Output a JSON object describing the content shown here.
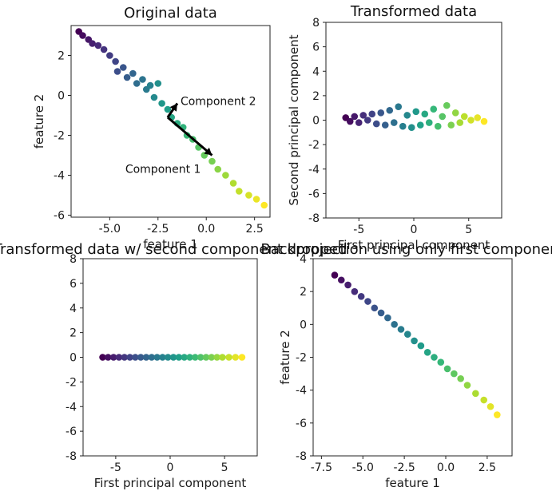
{
  "chart_data": [
    {
      "id": "p1",
      "type": "scatter",
      "title": "Original data",
      "xlabel": "feature 1",
      "ylabel": "feature 2",
      "xlim": [
        -7,
        3.3
      ],
      "ylim": [
        -6.1,
        3.5
      ],
      "xticks": [
        -5.0,
        -2.5,
        0.0,
        2.5
      ],
      "xtick_labels": [
        "-5.0",
        "-2.5",
        "0.0",
        "2.5"
      ],
      "yticks": [
        2,
        0,
        -2,
        -4,
        -6
      ],
      "ytick_labels": [
        "2",
        "0",
        "-2",
        "-4",
        "-6"
      ],
      "colormap": "viridis",
      "points": [
        [
          -6.6,
          3.2
        ],
        [
          -6.4,
          3.0
        ],
        [
          -6.1,
          2.8
        ],
        [
          -5.9,
          2.6
        ],
        [
          -5.6,
          2.5
        ],
        [
          -5.3,
          2.3
        ],
        [
          -5.0,
          2.0
        ],
        [
          -4.7,
          1.7
        ],
        [
          -4.6,
          1.2
        ],
        [
          -4.3,
          1.4
        ],
        [
          -4.1,
          0.9
        ],
        [
          -3.8,
          1.1
        ],
        [
          -3.6,
          0.6
        ],
        [
          -3.3,
          0.8
        ],
        [
          -3.1,
          0.3
        ],
        [
          -2.9,
          0.5
        ],
        [
          -2.7,
          -0.1
        ],
        [
          -2.5,
          0.6
        ],
        [
          -2.3,
          -0.4
        ],
        [
          -2.0,
          -0.7
        ],
        [
          -1.8,
          -1.1
        ],
        [
          -1.5,
          -1.4
        ],
        [
          -1.2,
          -1.6
        ],
        [
          -1.0,
          -2.0
        ],
        [
          -0.7,
          -2.2
        ],
        [
          -0.4,
          -2.6
        ],
        [
          -0.1,
          -3.0
        ],
        [
          0.3,
          -3.3
        ],
        [
          0.6,
          -3.7
        ],
        [
          1.0,
          -4.0
        ],
        [
          1.4,
          -4.4
        ],
        [
          1.7,
          -4.8
        ],
        [
          2.2,
          -5.0
        ],
        [
          2.6,
          -5.2
        ],
        [
          3.0,
          -5.5
        ]
      ],
      "arrows": [
        {
          "from": [
            -2.0,
            -1.1
          ],
          "to": [
            0.3,
            -3.0
          ],
          "label": "Component 1"
        },
        {
          "from": [
            -2.0,
            -1.1
          ],
          "to": [
            -1.5,
            -0.4
          ],
          "label": "Component 2"
        }
      ]
    },
    {
      "id": "p2",
      "type": "scatter",
      "title": "Transformed data",
      "xlabel": "First principal component",
      "ylabel": "Second principal component",
      "xlim": [
        -8,
        8
      ],
      "ylim": [
        -8,
        8
      ],
      "xticks": [
        -5,
        0,
        5
      ],
      "xtick_labels": [
        "-5",
        "0",
        "5"
      ],
      "yticks": [
        8,
        6,
        4,
        2,
        0,
        -2,
        -4,
        -6,
        -8
      ],
      "ytick_labels": [
        "8",
        "6",
        "4",
        "2",
        "0",
        "-2",
        "-4",
        "-6",
        "-8"
      ],
      "colormap": "viridis",
      "points": [
        [
          -6.2,
          0.2
        ],
        [
          -5.8,
          -0.1
        ],
        [
          -5.4,
          0.3
        ],
        [
          -5.0,
          -0.2
        ],
        [
          -4.6,
          0.4
        ],
        [
          -4.2,
          0.0
        ],
        [
          -3.8,
          0.5
        ],
        [
          -3.4,
          -0.3
        ],
        [
          -3.0,
          0.6
        ],
        [
          -2.6,
          -0.4
        ],
        [
          -2.2,
          0.8
        ],
        [
          -1.8,
          -0.2
        ],
        [
          -1.4,
          1.1
        ],
        [
          -1.0,
          -0.5
        ],
        [
          -0.6,
          0.4
        ],
        [
          -0.2,
          -0.6
        ],
        [
          0.2,
          0.7
        ],
        [
          0.6,
          -0.4
        ],
        [
          1.0,
          0.5
        ],
        [
          1.4,
          -0.2
        ],
        [
          1.8,
          0.9
        ],
        [
          2.2,
          -0.5
        ],
        [
          2.6,
          0.3
        ],
        [
          3.0,
          1.2
        ],
        [
          3.4,
          -0.4
        ],
        [
          3.8,
          0.6
        ],
        [
          4.2,
          -0.2
        ],
        [
          4.6,
          0.3
        ],
        [
          5.2,
          0.0
        ],
        [
          5.8,
          0.2
        ],
        [
          6.4,
          -0.1
        ]
      ]
    },
    {
      "id": "p3",
      "type": "scatter",
      "title": "Transformed data w/ second component dropped",
      "xlabel": "First principal component",
      "ylabel": "",
      "xlim": [
        -8,
        8
      ],
      "ylim": [
        -8,
        8
      ],
      "xticks": [
        -5,
        0,
        5
      ],
      "xtick_labels": [
        "-5",
        "0",
        "5"
      ],
      "yticks": [
        8,
        6,
        4,
        2,
        0,
        -2,
        -4,
        -6,
        -8
      ],
      "ytick_labels": [
        "8",
        "6",
        "4",
        "2",
        "0",
        "-2",
        "-4",
        "-6",
        "-8"
      ],
      "colormap": "viridis",
      "points": [
        [
          -6.2,
          0
        ],
        [
          -5.7,
          0
        ],
        [
          -5.2,
          0
        ],
        [
          -4.7,
          0
        ],
        [
          -4.2,
          0
        ],
        [
          -3.7,
          0
        ],
        [
          -3.2,
          0
        ],
        [
          -2.7,
          0
        ],
        [
          -2.2,
          0
        ],
        [
          -1.7,
          0
        ],
        [
          -1.2,
          0
        ],
        [
          -0.7,
          0
        ],
        [
          -0.2,
          0
        ],
        [
          0.3,
          0
        ],
        [
          0.8,
          0
        ],
        [
          1.3,
          0
        ],
        [
          1.8,
          0
        ],
        [
          2.3,
          0
        ],
        [
          2.8,
          0
        ],
        [
          3.3,
          0
        ],
        [
          3.8,
          0
        ],
        [
          4.3,
          0
        ],
        [
          4.8,
          0
        ],
        [
          5.4,
          0
        ],
        [
          6.0,
          0
        ],
        [
          6.6,
          0
        ]
      ]
    },
    {
      "id": "p4",
      "type": "scatter",
      "title": "Backprojection using only first component",
      "xlabel": "feature 1",
      "ylabel": "feature 2",
      "xlim": [
        -8,
        4
      ],
      "ylim": [
        -8,
        4
      ],
      "xticks": [
        -7.5,
        -5.0,
        -2.5,
        0.0,
        2.5
      ],
      "xtick_labels": [
        "-7.5",
        "-5.0",
        "-2.5",
        "0.0",
        "2.5"
      ],
      "yticks": [
        4,
        2,
        0,
        -2,
        -4,
        -6,
        -8
      ],
      "ytick_labels": [
        "4",
        "2",
        "0",
        "-2",
        "-4",
        "-6",
        "-8"
      ],
      "colormap": "viridis",
      "points": [
        [
          -6.7,
          3.0
        ],
        [
          -6.3,
          2.7
        ],
        [
          -5.9,
          2.4
        ],
        [
          -5.5,
          2.0
        ],
        [
          -5.1,
          1.7
        ],
        [
          -4.7,
          1.4
        ],
        [
          -4.3,
          1.0
        ],
        [
          -3.9,
          0.7
        ],
        [
          -3.5,
          0.4
        ],
        [
          -3.1,
          0.0
        ],
        [
          -2.7,
          -0.3
        ],
        [
          -2.3,
          -0.6
        ],
        [
          -1.9,
          -1.0
        ],
        [
          -1.5,
          -1.3
        ],
        [
          -1.1,
          -1.7
        ],
        [
          -0.7,
          -2.0
        ],
        [
          -0.3,
          -2.3
        ],
        [
          0.1,
          -2.7
        ],
        [
          0.5,
          -3.0
        ],
        [
          0.9,
          -3.3
        ],
        [
          1.3,
          -3.7
        ],
        [
          1.8,
          -4.2
        ],
        [
          2.3,
          -4.6
        ],
        [
          2.7,
          -5.0
        ],
        [
          3.1,
          -5.5
        ]
      ]
    }
  ]
}
